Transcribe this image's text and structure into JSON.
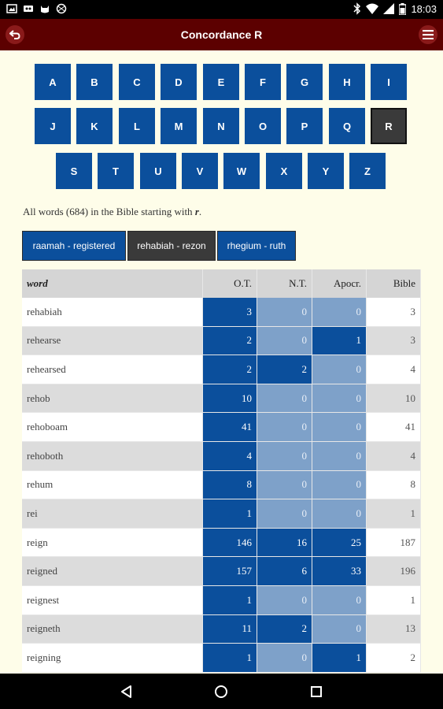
{
  "status_bar": {
    "time": "18:03",
    "icons": [
      "image-icon",
      "vpn-icon",
      "cat-icon",
      "sports-ball-icon",
      "bluetooth-icon",
      "wifi-icon",
      "signal-icon",
      "battery-icon"
    ]
  },
  "app_bar": {
    "title": "Concordance R",
    "back_icon": "back-arrow-icon",
    "menu_icon": "hamburger-menu-icon"
  },
  "alphabet": {
    "row1": [
      "A",
      "B",
      "C",
      "D",
      "E",
      "F",
      "G",
      "H",
      "I"
    ],
    "row2": [
      "J",
      "K",
      "L",
      "M",
      "N",
      "O",
      "P",
      "Q",
      "R"
    ],
    "row3": [
      "S",
      "T",
      "U",
      "V",
      "W",
      "X",
      "Y",
      "Z"
    ],
    "active": "R"
  },
  "summary": {
    "prefix": "All words (684) in the Bible starting with ",
    "letter": "r",
    "suffix": "."
  },
  "range_tabs": [
    {
      "label": "raamah - registered",
      "selected": false
    },
    {
      "label": "rehabiah - rezon",
      "selected": true
    },
    {
      "label": "rhegium - ruth",
      "selected": false
    }
  ],
  "colors": {
    "accent_blue": "#0b4f9c",
    "light_blue": "#7ea1c9",
    "app_bar": "#5c0000",
    "active_gray": "#3a3a3a",
    "background": "#fefde9"
  },
  "table": {
    "headers": {
      "word": "word",
      "ot": "O.T.",
      "nt": "N.T.",
      "apocr": "Apocr.",
      "bible": "Bible"
    },
    "rows": [
      {
        "word": "rehabiah",
        "ot": "3",
        "nt": "0",
        "apocr": "0",
        "bible": "3"
      },
      {
        "word": "rehearse",
        "ot": "2",
        "nt": "0",
        "apocr": "1",
        "bible": "3"
      },
      {
        "word": "rehearsed",
        "ot": "2",
        "nt": "2",
        "apocr": "0",
        "bible": "4"
      },
      {
        "word": "rehob",
        "ot": "10",
        "nt": "0",
        "apocr": "0",
        "bible": "10"
      },
      {
        "word": "rehoboam",
        "ot": "41",
        "nt": "0",
        "apocr": "0",
        "bible": "41"
      },
      {
        "word": "rehoboth",
        "ot": "4",
        "nt": "0",
        "apocr": "0",
        "bible": "4"
      },
      {
        "word": "rehum",
        "ot": "8",
        "nt": "0",
        "apocr": "0",
        "bible": "8"
      },
      {
        "word": "rei",
        "ot": "1",
        "nt": "0",
        "apocr": "0",
        "bible": "1"
      },
      {
        "word": "reign",
        "ot": "146",
        "nt": "16",
        "apocr": "25",
        "bible": "187"
      },
      {
        "word": "reigned",
        "ot": "157",
        "nt": "6",
        "apocr": "33",
        "bible": "196"
      },
      {
        "word": "reignest",
        "ot": "1",
        "nt": "0",
        "apocr": "0",
        "bible": "1"
      },
      {
        "word": "reigneth",
        "ot": "11",
        "nt": "2",
        "apocr": "0",
        "bible": "13"
      },
      {
        "word": "reigning",
        "ot": "1",
        "nt": "0",
        "apocr": "1",
        "bible": "2"
      }
    ]
  },
  "nav_bar": {
    "icons": [
      "nav-back-icon",
      "nav-home-icon",
      "nav-recents-icon"
    ]
  }
}
